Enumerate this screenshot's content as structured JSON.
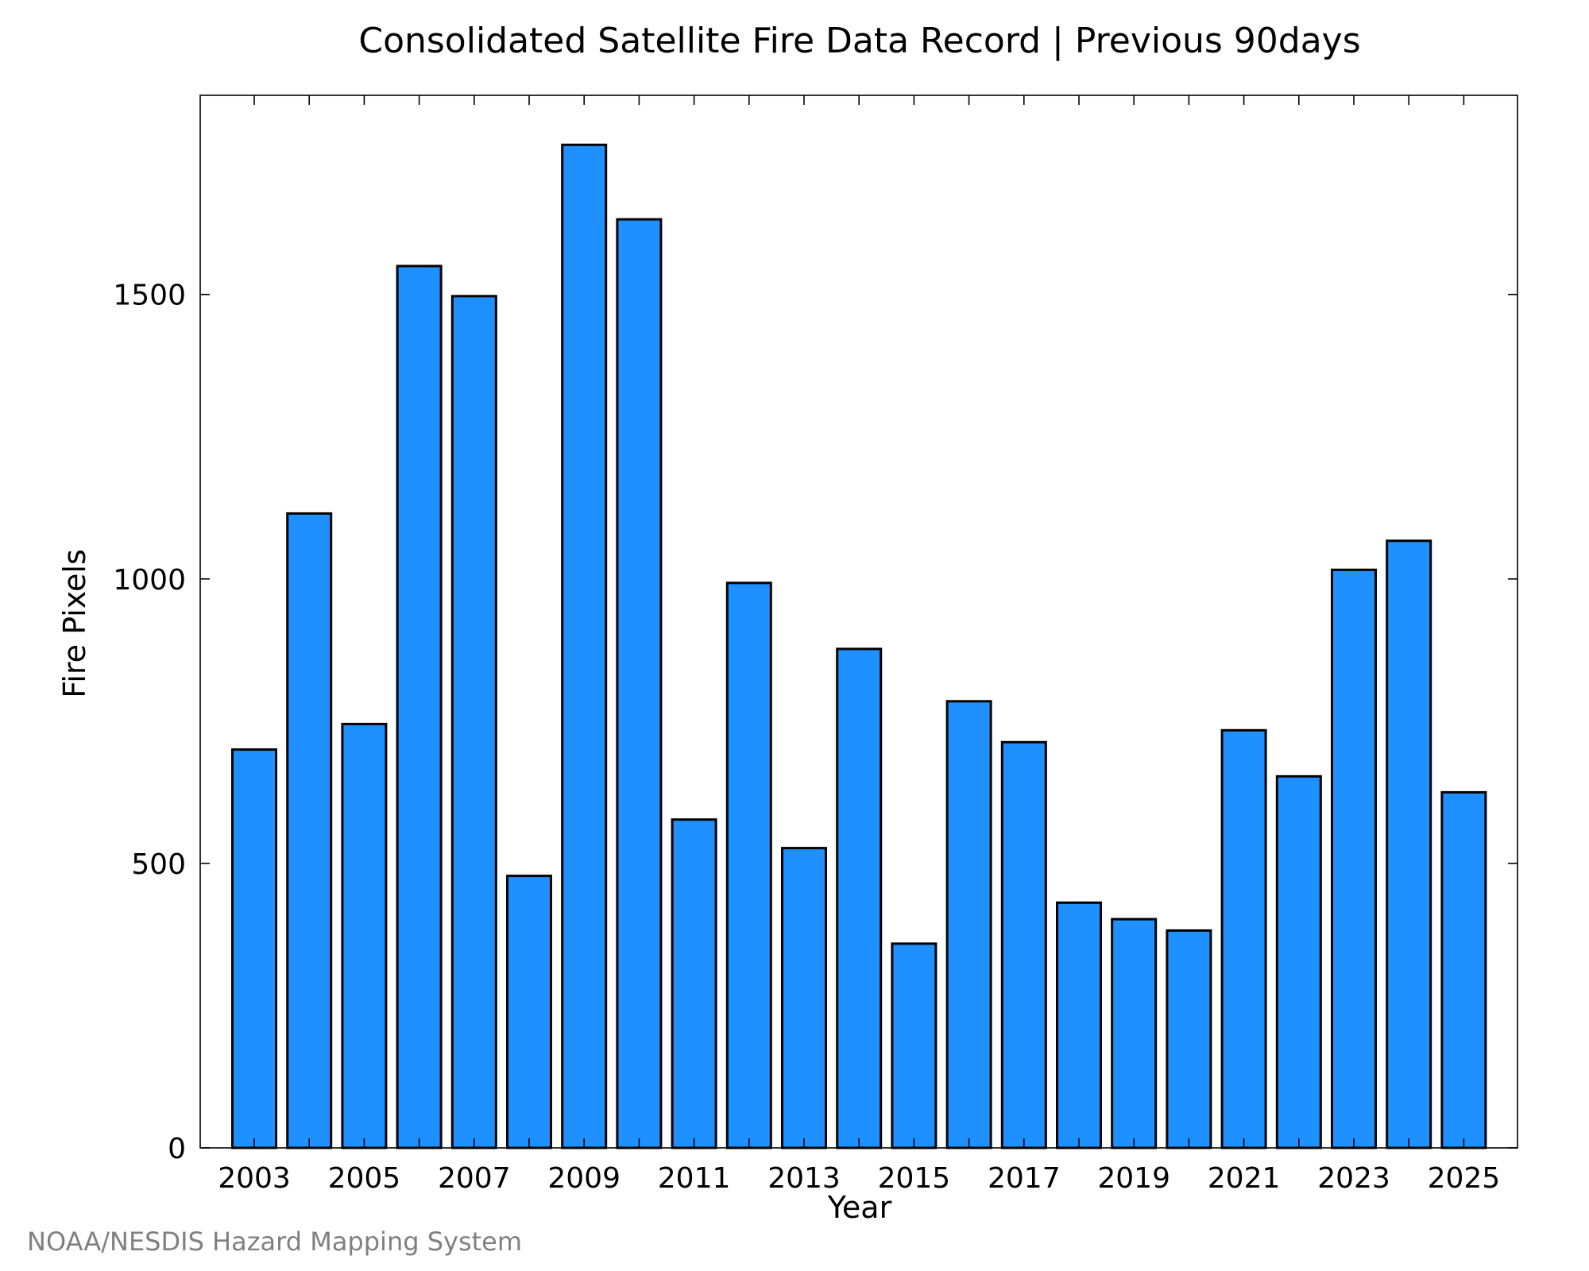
{
  "chart_data": {
    "type": "bar",
    "title": "Consolidated Satellite Fire Data Record | Previous 90days",
    "xlabel": "Year",
    "ylabel": "Fire Pixels",
    "categories": [
      "2003",
      "2004",
      "2005",
      "2006",
      "2007",
      "2008",
      "2009",
      "2010",
      "2011",
      "2012",
      "2013",
      "2014",
      "2015",
      "2016",
      "2017",
      "2018",
      "2019",
      "2020",
      "2021",
      "2022",
      "2023",
      "2024",
      "2025"
    ],
    "values": [
      700,
      1115,
      745,
      1550,
      1497,
      478,
      1763,
      1632,
      577,
      993,
      527,
      877,
      359,
      785,
      713,
      431,
      402,
      382,
      734,
      653,
      1016,
      1067,
      625
    ],
    "x_tick_labels": [
      "2003",
      "2005",
      "2007",
      "2009",
      "2011",
      "2013",
      "2015",
      "2017",
      "2019",
      "2021",
      "2023",
      "2025"
    ],
    "y_ticks": [
      0,
      500,
      1000,
      1500
    ],
    "ylim": [
      0,
      1850
    ],
    "grid": false,
    "legend": "none",
    "bar_color": "#1e90ff",
    "edge_color": "#000000"
  },
  "footer": {
    "credit": "NOAA/NESDIS Hazard Mapping System"
  }
}
